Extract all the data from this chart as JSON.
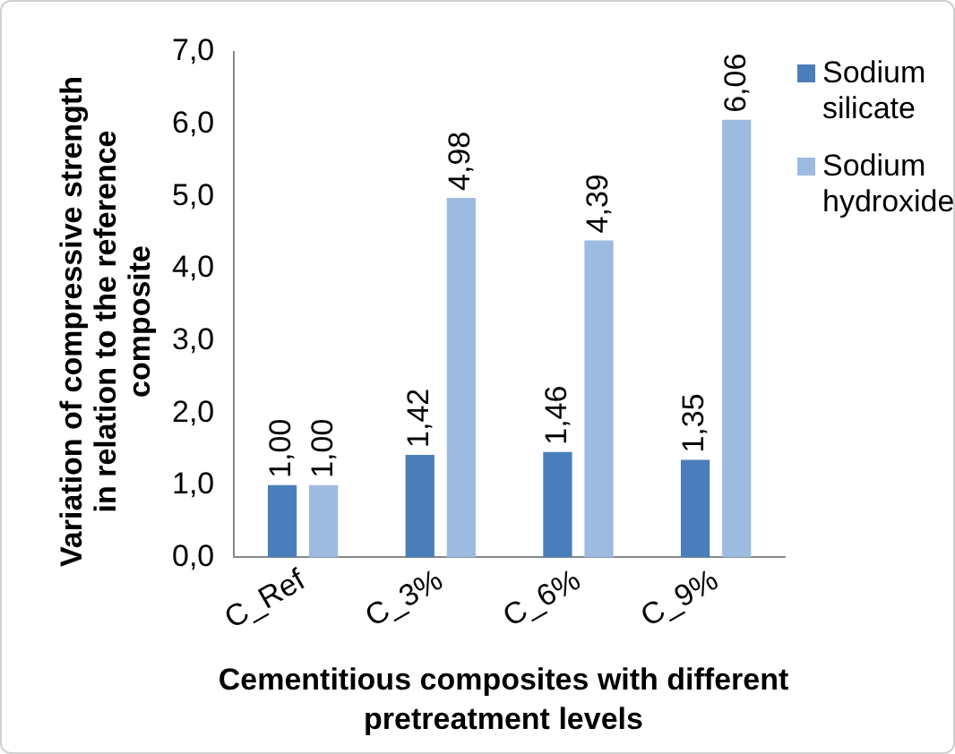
{
  "chart_data": {
    "type": "bar",
    "xlabel": "Cementitious composites with different pretreatment levels",
    "ylabel": "Variation of compressive strength in relation to the reference composite",
    "categories": [
      "C_Ref",
      "C_3%",
      "C_6%",
      "C_9%"
    ],
    "series": [
      {
        "name": "Sodium silicate",
        "color": "#4a7ebb",
        "values": [
          1.0,
          1.42,
          1.46,
          1.35
        ],
        "value_labels": [
          "1,00",
          "1,42",
          "1,46",
          "1,35"
        ]
      },
      {
        "name": "Sodium hydroxide",
        "color": "#9dbbe0",
        "values": [
          1.0,
          4.98,
          4.39,
          6.06
        ],
        "value_labels": [
          "1,00",
          "4,98",
          "4,39",
          "6,06"
        ]
      }
    ],
    "ylim": [
      0,
      7
    ],
    "yticks": [
      {
        "value": 0,
        "label": "0,0"
      },
      {
        "value": 1,
        "label": "1,0"
      },
      {
        "value": 2,
        "label": "2,0"
      },
      {
        "value": 3,
        "label": "3,0"
      },
      {
        "value": 4,
        "label": "4,0"
      },
      {
        "value": 5,
        "label": "5,0"
      },
      {
        "value": 6,
        "label": "6,0"
      },
      {
        "value": 7,
        "label": "7,0"
      }
    ],
    "grid": false,
    "legend": "right"
  }
}
